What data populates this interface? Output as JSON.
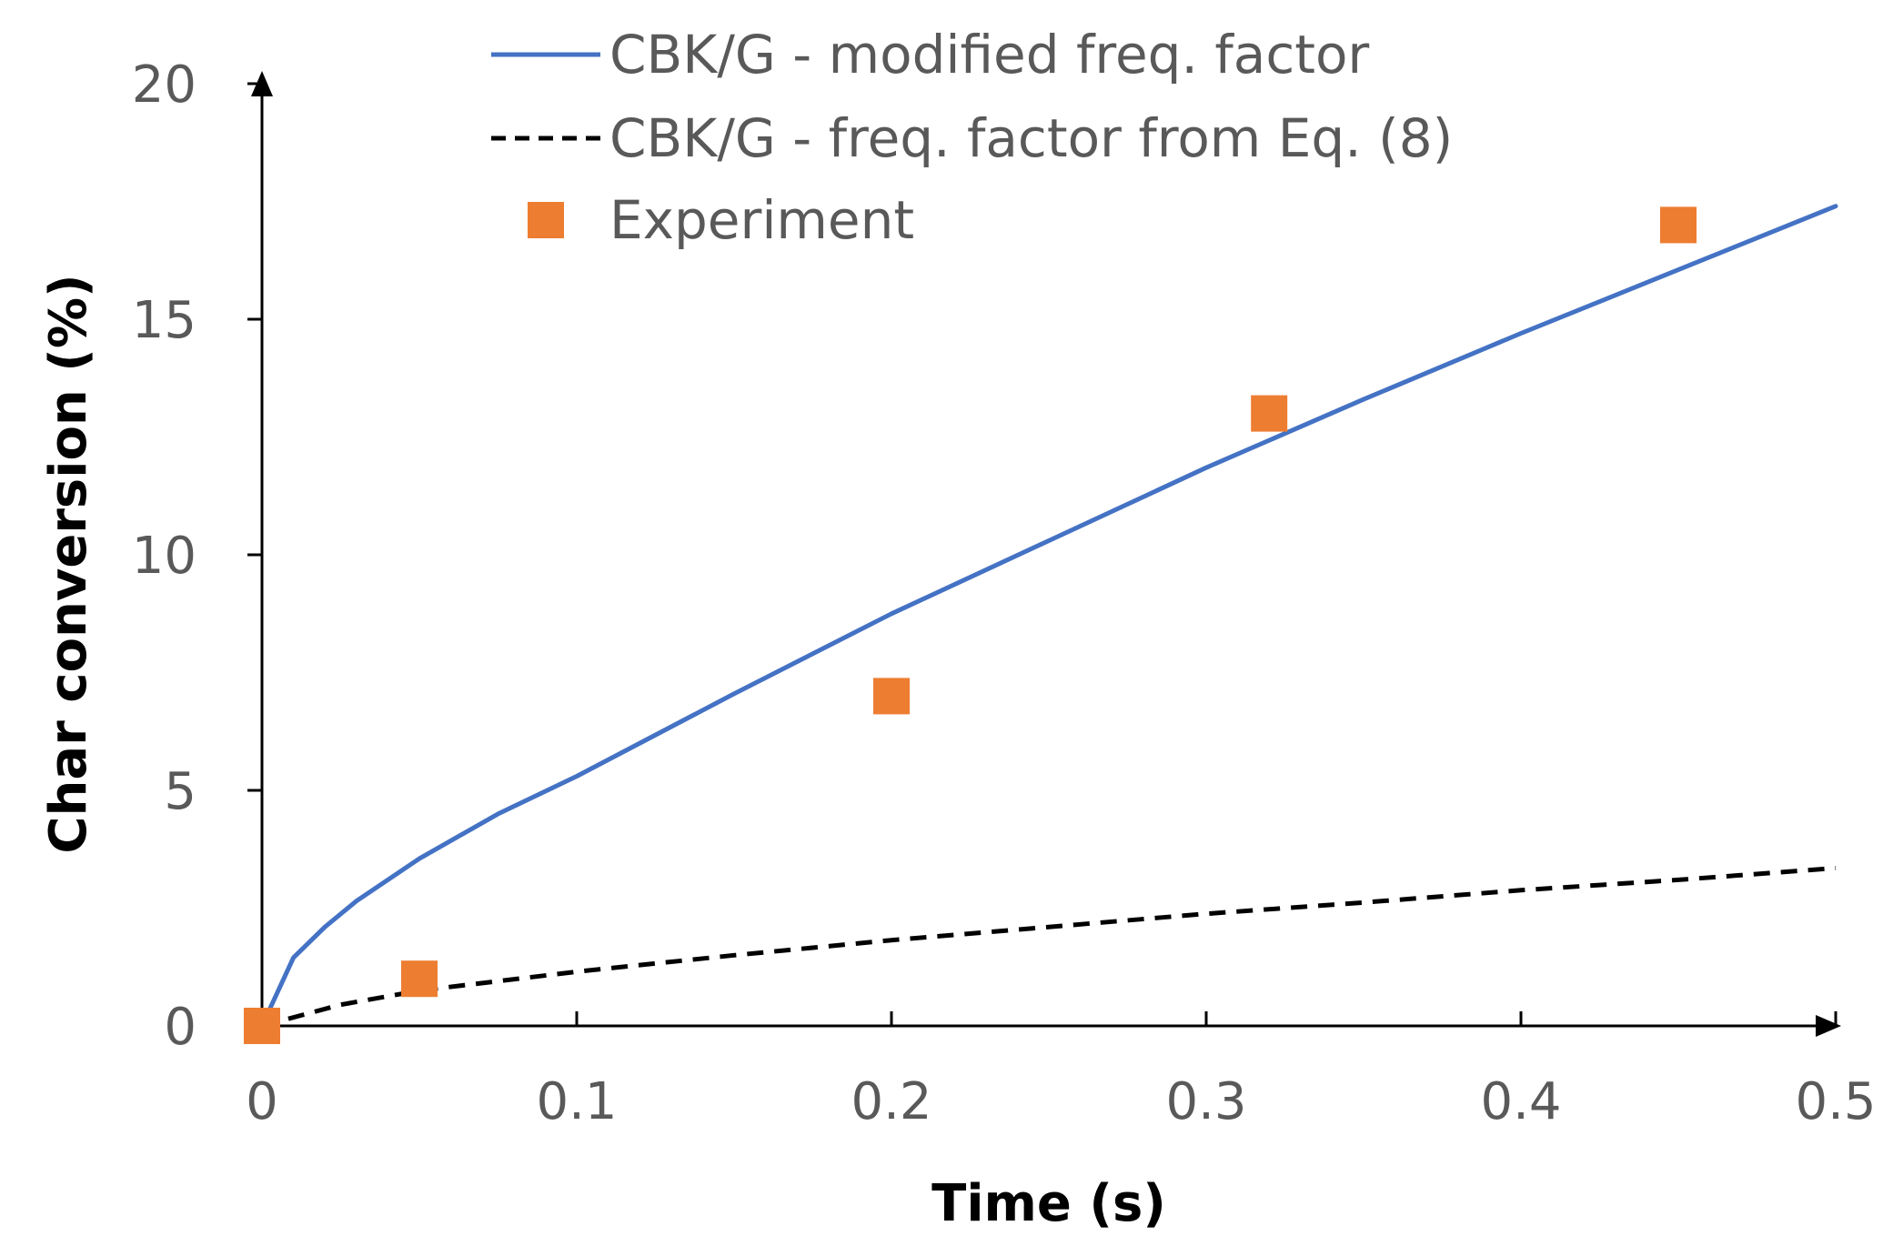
{
  "chart_data": {
    "type": "line",
    "title": "",
    "xlabel": "Time (s)",
    "ylabel": "Char conversion (%)",
    "xlim": [
      0,
      0.5
    ],
    "ylim": [
      0,
      20
    ],
    "x_ticks": [
      "0",
      "0.1",
      "0.2",
      "0.3",
      "0.4",
      "0.5"
    ],
    "y_ticks": [
      "0",
      "5",
      "10",
      "15",
      "20"
    ],
    "grid": false,
    "legend_position": "top",
    "series": [
      {
        "name": "CBK/G - modified freq. factor",
        "kind": "line",
        "style": "solid",
        "color": "#4472C4",
        "x": [
          0,
          0.01,
          0.02,
          0.03,
          0.05,
          0.075,
          0.1,
          0.15,
          0.2,
          0.25,
          0.3,
          0.35,
          0.4,
          0.45,
          0.5
        ],
        "y": [
          0,
          1.45,
          2.1,
          2.65,
          3.55,
          4.5,
          5.3,
          7.05,
          8.75,
          10.3,
          11.85,
          13.3,
          14.7,
          16.05,
          17.4
        ]
      },
      {
        "name": "CBK/G - freq. factor from Eq. (8)",
        "kind": "line",
        "style": "dashed",
        "color": "#000000",
        "x": [
          0,
          0.025,
          0.05,
          0.1,
          0.15,
          0.2,
          0.25,
          0.3,
          0.35,
          0.4,
          0.45,
          0.5
        ],
        "y": [
          0,
          0.45,
          0.75,
          1.15,
          1.5,
          1.82,
          2.1,
          2.38,
          2.62,
          2.88,
          3.1,
          3.35
        ]
      },
      {
        "name": "Experiment",
        "kind": "scatter",
        "marker": "square",
        "color": "#ED7D31",
        "x": [
          0,
          0.05,
          0.2,
          0.32,
          0.45
        ],
        "y": [
          0,
          1,
          7,
          13,
          17
        ]
      }
    ]
  }
}
